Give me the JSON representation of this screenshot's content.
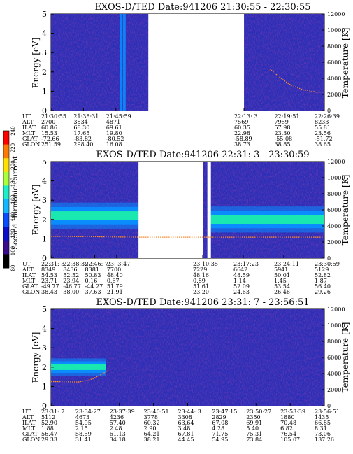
{
  "chart_data": [
    {
      "type": "heatmap",
      "title": "EXOS-D/TED   Date:941206  21:30:55 - 22:30:55",
      "ylabel": "Energy [eV]",
      "y2label": "Temperature [K]",
      "ylim": [
        0,
        5
      ],
      "y2lim": [
        0,
        12000
      ],
      "yticks": [
        "0",
        "1",
        "2",
        "3",
        "4",
        "5"
      ],
      "y2ticks": [
        "0",
        "2000",
        "4000",
        "6000",
        "8000",
        "10000",
        "12000"
      ],
      "gaps": [
        [
          0.356,
          0.706
        ]
      ],
      "bands": [],
      "vlines": [
        0.256,
        0.268
      ],
      "temperature_trace": [
        [
          0.8,
          5200
        ],
        [
          0.83,
          4300
        ],
        [
          0.87,
          3300
        ],
        [
          0.92,
          2600
        ],
        [
          0.97,
          2300
        ],
        [
          1.0,
          2300
        ]
      ],
      "ephemeris": {
        "labels": [
          "UT",
          "ALT",
          "ILAT",
          "MLT",
          "GLAT",
          "GLON"
        ],
        "columns": [
          [
            "21:30:55",
            "2700",
            "60.86",
            "15.53",
            "-72.66",
            "251.59"
          ],
          [
            "21:38:31",
            "3834",
            "68.30",
            "17.65",
            "-83.82",
            "298.40"
          ],
          [
            "21:45:59",
            "4871",
            "69.61",
            "19.80",
            "-80.52",
            "16.08"
          ],
          [
            "22:13: 3",
            "7569",
            "60.35",
            "22.98",
            "-58.89",
            "38.73"
          ],
          [
            "22:19:51",
            "7959",
            "57.98",
            "23.30",
            "-55.08",
            "38.85"
          ],
          [
            "22:26:39",
            "8233",
            "55.81",
            "23.56",
            "-51.72",
            "38.65"
          ]
        ]
      }
    },
    {
      "type": "heatmap",
      "title": "EXOS-D/TED   Date:941206  22:31: 3 - 23:30:59",
      "ylabel": "Energy [eV]",
      "y2label": "Temperature [K]",
      "ylim": [
        0,
        5
      ],
      "y2lim": [
        0,
        12000
      ],
      "yticks": [
        "0",
        "1",
        "2",
        "3",
        "4",
        "5"
      ],
      "y2ticks": [
        "0",
        "2000",
        "4000",
        "6000",
        "8000",
        "10000",
        "12000"
      ],
      "gaps": [
        [
          0.32,
          0.555
        ],
        [
          0.572,
          0.585
        ]
      ],
      "bands": [
        {
          "x": [
            0.0,
            0.32
          ],
          "center": 2.2,
          "width": 0.9
        },
        {
          "x": [
            0.585,
            1.0
          ],
          "center": 2.0,
          "width": 0.9
        }
      ],
      "vlines": [],
      "temperature_trace": [
        [
          0.0,
          2700
        ],
        [
          0.32,
          2600
        ],
        [
          0.585,
          2600
        ],
        [
          1.0,
          2600
        ]
      ],
      "ephemeris": {
        "labels": [
          "UT",
          "ALT",
          "ILAT",
          "MLT",
          "GLAT",
          "GLON"
        ],
        "columns": [
          [
            "22:31: 3",
            "8349",
            "54.53",
            "23.71",
            "-49.77",
            "38.43"
          ],
          [
            "22:38:39",
            "8436",
            "52.52",
            "23.94",
            "-46.77",
            "38.00"
          ],
          [
            "22:46: 7",
            "8381",
            "50.83",
            "0.16",
            "-44.27",
            "37.63"
          ],
          [
            "23: 3:47",
            "7700",
            "48.40",
            "0.67",
            "51.79",
            "21.91"
          ],
          [
            "23:10:35",
            "7229",
            "48.16",
            "0.89",
            "51.61",
            "23.20"
          ],
          [
            "23:17:23",
            "6642",
            "48.59",
            "1.14",
            "52.09",
            "24.63"
          ],
          [
            "23:24:11",
            "5941",
            "50.01",
            "1.45",
            "53.54",
            "26.46"
          ],
          [
            "23:30:59",
            "5129",
            "52.82",
            "1.87",
            "56.40",
            "29.26"
          ]
        ]
      }
    },
    {
      "type": "heatmap",
      "title": "EXOS-D/TED   Date:941206  23:31: 7 - 23:56:51",
      "ylabel": "Energy [eV]",
      "y2label": "Temperature [K]",
      "ylim": [
        0,
        5
      ],
      "y2lim": [
        0,
        12000
      ],
      "yticks": [
        "0",
        "1",
        "2",
        "3",
        "4",
        "5"
      ],
      "y2ticks": [
        "0",
        "2000",
        "4000",
        "6000",
        "8000",
        "10000",
        "12000"
      ],
      "gaps": [],
      "bands": [
        {
          "x": [
            0.0,
            0.2
          ],
          "center": 2.0,
          "width": 0.6
        }
      ],
      "vlines": [],
      "temperature_trace": [
        [
          0.0,
          3000
        ],
        [
          0.1,
          2950
        ],
        [
          0.15,
          3300
        ],
        [
          0.19,
          4000
        ],
        [
          0.21,
          4400
        ]
      ],
      "ephemeris": {
        "labels": [
          "UT",
          "ALT",
          "ILAT",
          "MLT",
          "GLAT",
          "GLON"
        ],
        "columns": [
          [
            "23:31: 7",
            "5112",
            "52.90",
            "1.88",
            "56.47",
            "29.33"
          ],
          [
            "23:34:27",
            "4673",
            "54.95",
            "2.15",
            "58.59",
            "31.41"
          ],
          [
            "23:37:39",
            "4236",
            "57.40",
            "2.48",
            "61.13",
            "34.18"
          ],
          [
            "23:40:51",
            "3778",
            "60.32",
            "2.90",
            "64.21",
            "38.21"
          ],
          [
            "23:44: 3",
            "3308",
            "63.64",
            "3.48",
            "67.81",
            "44.45"
          ],
          [
            "23:47:15",
            "2829",
            "67.08",
            "4.28",
            "71.75",
            "54.95"
          ],
          [
            "23:50:27",
            "2350",
            "69.91",
            "5.40",
            "75.31",
            "73.84"
          ],
          [
            "23:53:39",
            "1880",
            "70.48",
            "6.82",
            "76.54",
            "105.07"
          ],
          [
            "23:56:51",
            "1435",
            "66.85",
            "8.31",
            "73.06",
            "137.26"
          ]
        ]
      }
    }
  ],
  "colorbar": {
    "label": "Second Harmonic Current",
    "ticks": [
      "80",
      "100",
      "120",
      "140",
      "160",
      "180",
      "200",
      "220",
      "240"
    ],
    "colors": [
      "#000000",
      "#3a0a8c",
      "#0b10c8",
      "#0a4cff",
      "#11b8ff",
      "#19f0c8",
      "#a8ff3a",
      "#ffe000",
      "#ff7a00",
      "#ff0000"
    ]
  },
  "colors": {
    "background": "#2b2fb6",
    "band_core": "#19e8b0",
    "band_edge": "#0a8cff",
    "temperature": "#ff8a2a"
  }
}
